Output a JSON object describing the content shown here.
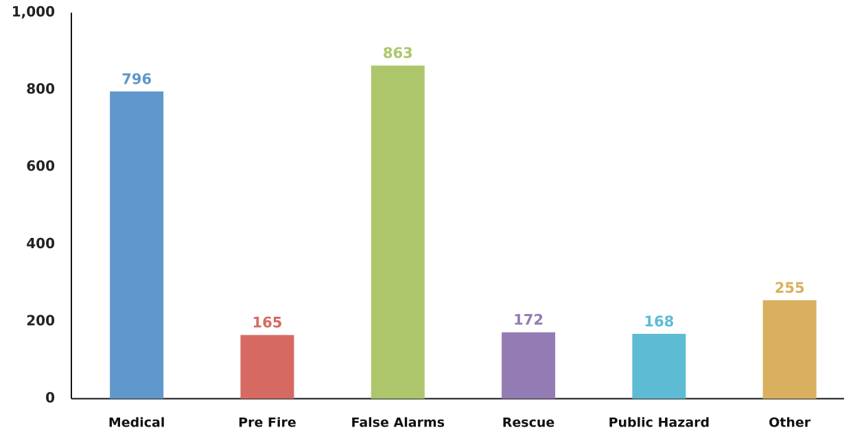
{
  "chart_data": {
    "type": "bar",
    "categories": [
      "Medical",
      "Pre Fire",
      "False Alarms",
      "Rescue",
      "Public Hazard",
      "Other"
    ],
    "values": [
      796,
      165,
      863,
      172,
      168,
      255
    ],
    "colors": [
      "#6097cc",
      "#d66a62",
      "#adc66c",
      "#937cb3",
      "#5dbcd4",
      "#d9b05d"
    ],
    "ylim": [
      0,
      1000
    ],
    "yticks": [
      0,
      200,
      400,
      600,
      800,
      {
        "value": 1000,
        "label": "1,000"
      }
    ],
    "grid": false
  }
}
